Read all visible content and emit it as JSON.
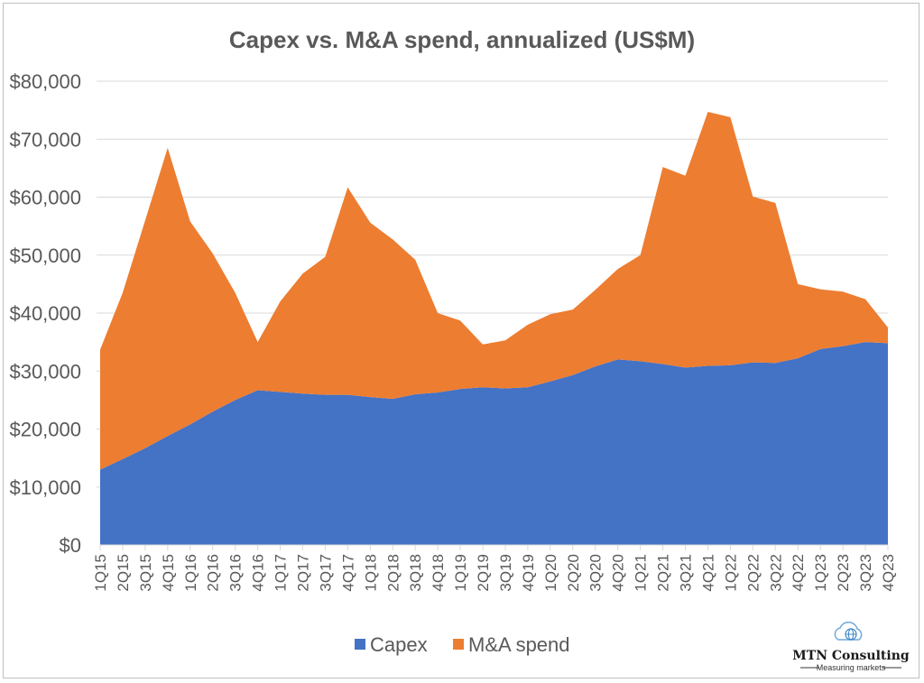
{
  "chart_data": {
    "type": "area",
    "stacked": true,
    "title": "Capex vs. M&A spend, annualized (US$M)",
    "xlabel": "",
    "ylabel": "",
    "ylim": [
      0,
      80000
    ],
    "yticks": [
      0,
      10000,
      20000,
      30000,
      40000,
      50000,
      60000,
      70000,
      80000
    ],
    "ytick_labels": [
      "$0",
      "$10,000",
      "$20,000",
      "$30,000",
      "$40,000",
      "$50,000",
      "$60,000",
      "$70,000",
      "$80,000"
    ],
    "grid": true,
    "legend_position": "bottom",
    "categories": [
      "1Q15",
      "2Q15",
      "3Q15",
      "4Q15",
      "1Q16",
      "2Q16",
      "3Q16",
      "4Q16",
      "1Q17",
      "2Q17",
      "3Q17",
      "4Q17",
      "1Q18",
      "2Q18",
      "3Q18",
      "4Q18",
      "1Q19",
      "2Q19",
      "3Q19",
      "4Q19",
      "1Q20",
      "2Q20",
      "3Q20",
      "4Q20",
      "1Q21",
      "2Q21",
      "3Q21",
      "4Q21",
      "1Q22",
      "2Q22",
      "3Q22",
      "4Q22",
      "1Q23",
      "2Q23",
      "3Q23",
      "4Q23"
    ],
    "series": [
      {
        "name": "Capex",
        "color": "#4472C4",
        "values": [
          13000,
          14800,
          16700,
          18800,
          20800,
          23000,
          25000,
          26700,
          26400,
          26100,
          25900,
          25900,
          25500,
          25200,
          26000,
          26300,
          26900,
          27200,
          27000,
          27200,
          28200,
          29300,
          30800,
          32000,
          31700,
          31200,
          30600,
          30900,
          31000,
          31500,
          31400,
          32200,
          33800,
          34300,
          35000,
          34800
        ]
      },
      {
        "name": "M&A spend",
        "color": "#ED7D31",
        "values": [
          20700,
          28700,
          39300,
          49700,
          35000,
          27300,
          18500,
          8300,
          15600,
          20700,
          23800,
          35800,
          30100,
          27500,
          23200,
          13700,
          11800,
          7400,
          8300,
          10800,
          11600,
          11300,
          13200,
          15600,
          18300,
          34000,
          33100,
          43800,
          42800,
          28600,
          27600,
          12800,
          10300,
          9400,
          7400,
          2700
        ]
      }
    ]
  },
  "branding": {
    "logo_name": "MTN Consulting",
    "logo_tagline": "Measuring markets",
    "logo_icon": "globe-cloud-icon"
  }
}
